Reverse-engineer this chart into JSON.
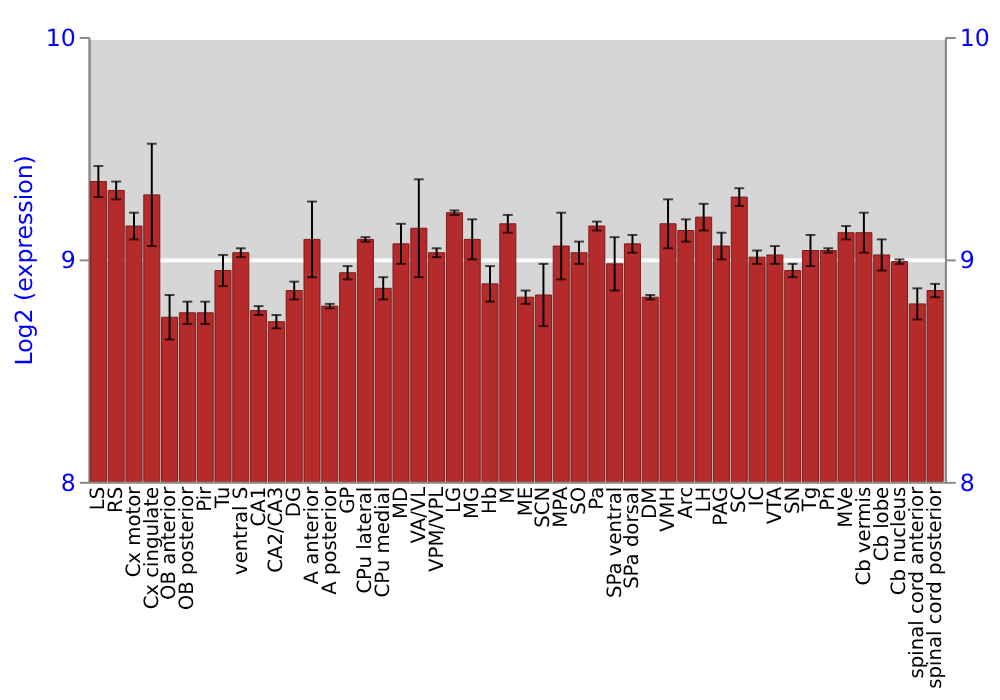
{
  "chart_data": {
    "type": "bar",
    "ylabel": "Log2 (expression)",
    "categories": [
      "LS",
      "RS",
      "Cx motor",
      "Cx cingulate",
      "OB anterior",
      "OB posterior",
      "Pir",
      "Tu",
      "ventral S",
      "CA1",
      "CA2/CA3",
      "DG",
      "A anterior",
      "A posterior",
      "GP",
      "CPu lateral",
      "CPu medial",
      "MD",
      "VA/VL",
      "VPM/VPL",
      "LG",
      "MG",
      "Hb",
      "M",
      "ME",
      "SCN",
      "MPA",
      "SO",
      "Pa",
      "SPa ventral",
      "SPa dorsal",
      "DM",
      "VMH",
      "Arc",
      "LH",
      "PAG",
      "SC",
      "IC",
      "VTA",
      "SN",
      "Tg",
      "Pn",
      "MVe",
      "Cb vermis",
      "Cb lobe",
      "Cb nucleus",
      "spinal cord anterior",
      "spinal cord posterior"
    ],
    "values": [
      9.35,
      9.31,
      9.15,
      9.29,
      8.74,
      8.76,
      8.76,
      8.95,
      9.03,
      8.77,
      8.72,
      8.86,
      9.09,
      8.79,
      8.94,
      9.09,
      8.87,
      9.07,
      9.14,
      9.03,
      9.21,
      9.09,
      8.89,
      9.16,
      8.83,
      8.84,
      9.06,
      9.03,
      9.15,
      8.98,
      9.07,
      8.83,
      9.16,
      9.13,
      9.19,
      9.06,
      9.28,
      9.01,
      9.02,
      8.95,
      9.04,
      9.04,
      9.12,
      9.12,
      9.02,
      8.99,
      8.8,
      8.86
    ],
    "errors": [
      0.07,
      0.04,
      0.06,
      0.23,
      0.1,
      0.05,
      0.05,
      0.07,
      0.02,
      0.02,
      0.03,
      0.04,
      0.17,
      0.01,
      0.03,
      0.01,
      0.05,
      0.09,
      0.22,
      0.02,
      0.01,
      0.09,
      0.08,
      0.04,
      0.03,
      0.14,
      0.15,
      0.05,
      0.02,
      0.12,
      0.04,
      0.01,
      0.11,
      0.05,
      0.06,
      0.06,
      0.04,
      0.03,
      0.04,
      0.03,
      0.07,
      0.01,
      0.03,
      0.09,
      0.07,
      0.01,
      0.07,
      0.03
    ],
    "color": "#b52a2a",
    "ylim": [
      8,
      10
    ],
    "yticks": [
      8,
      9,
      10
    ],
    "y2lim": [
      8,
      10
    ],
    "y2ticks": [
      8,
      9,
      10
    ],
    "grid": "y"
  }
}
